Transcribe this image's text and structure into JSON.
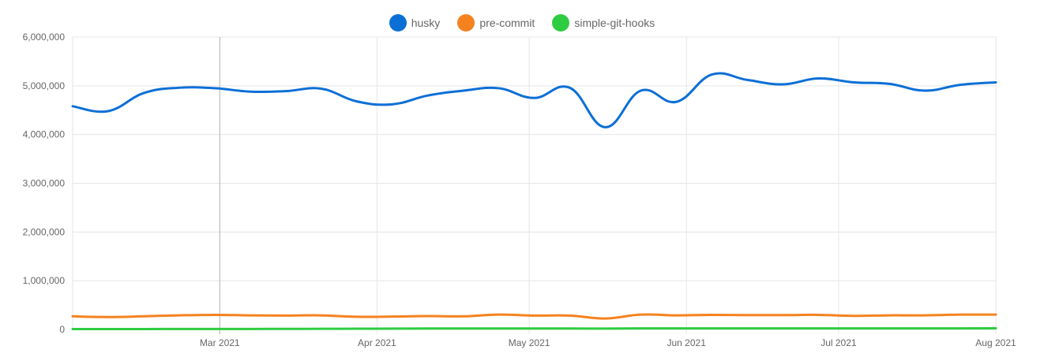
{
  "chart_data": {
    "type": "line",
    "x_tick_labels": [
      "Mar 2021",
      "Apr 2021",
      "May 2021",
      "Jun 2021",
      "Jul 2021",
      "Aug 2021"
    ],
    "y_tick_labels": [
      "6,000,000",
      "5,000,000",
      "4,000,000",
      "3,000,000",
      "2,000,000",
      "1,000,000",
      "0"
    ],
    "ylim": [
      0,
      6000000
    ],
    "grid": true,
    "legend_position": "top-center",
    "x": [
      "2021-01-31",
      "2021-02-07",
      "2021-02-14",
      "2021-02-21",
      "2021-02-28",
      "2021-03-07",
      "2021-03-14",
      "2021-03-21",
      "2021-03-28",
      "2021-04-04",
      "2021-04-11",
      "2021-04-18",
      "2021-04-25",
      "2021-05-02",
      "2021-05-09",
      "2021-05-16",
      "2021-05-23",
      "2021-05-30",
      "2021-06-06",
      "2021-06-13",
      "2021-06-20",
      "2021-06-27",
      "2021-07-04",
      "2021-07-11",
      "2021-07-18",
      "2021-07-25",
      "2021-08-01"
    ],
    "series": [
      {
        "name": "husky",
        "color": "#0b6fd6",
        "values": [
          4580000,
          4480000,
          4850000,
          4960000,
          4950000,
          4880000,
          4890000,
          4940000,
          4680000,
          4620000,
          4800000,
          4900000,
          4950000,
          4750000,
          4960000,
          4150000,
          4900000,
          4670000,
          5230000,
          5120000,
          5030000,
          5150000,
          5070000,
          5040000,
          4900000,
          5020000,
          5070000
        ]
      },
      {
        "name": "pre-commit",
        "color": "#f5821f",
        "values": [
          270000,
          255000,
          270000,
          290000,
          300000,
          290000,
          285000,
          290000,
          260000,
          265000,
          275000,
          270000,
          305000,
          285000,
          285000,
          225000,
          305000,
          290000,
          300000,
          295000,
          295000,
          300000,
          280000,
          290000,
          290000,
          305000,
          305000
        ]
      },
      {
        "name": "simple-git-hooks",
        "color": "#2ecc40",
        "values": [
          8000,
          8000,
          9000,
          10000,
          10000,
          11000,
          12000,
          14000,
          16000,
          18000,
          20000,
          20000,
          21000,
          21000,
          20000,
          18000,
          22000,
          22000,
          23000,
          23000,
          22000,
          23000,
          22000,
          22000,
          22000,
          23000,
          24000
        ]
      }
    ]
  }
}
